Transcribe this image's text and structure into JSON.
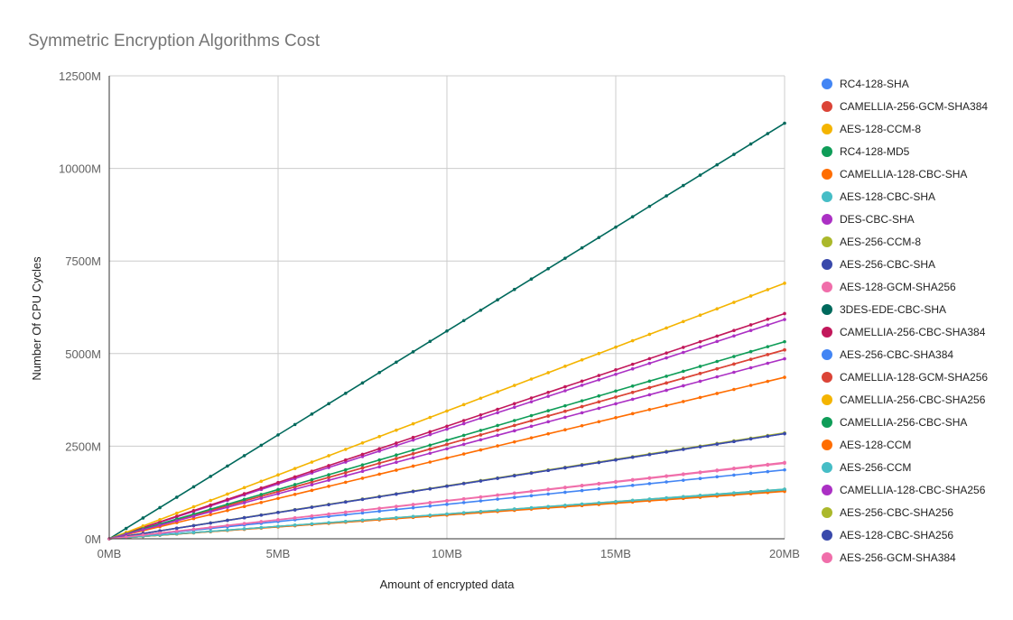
{
  "chart_data": {
    "type": "line",
    "title": "Symmetric Encryption Algorithms Cost",
    "xlabel": "Amount of encrypted data",
    "ylabel": "Number Of CPU Cycles",
    "x_unit": "MB",
    "y_unit": "M",
    "xlim": [
      0,
      20
    ],
    "ylim": [
      0,
      12500
    ],
    "x_ticks": [
      0,
      5,
      10,
      15,
      20
    ],
    "y_ticks": [
      0,
      2500,
      5000,
      7500,
      10000,
      12500
    ],
    "x_tick_labels": [
      "0MB",
      "5MB",
      "10MB",
      "15MB",
      "20MB"
    ],
    "y_tick_labels": [
      "0M",
      "2500M",
      "5000M",
      "7500M",
      "10000M",
      "12500M"
    ],
    "x_step": 0.5,
    "grid": true,
    "legend_position": "right",
    "series": [
      {
        "name": "RC4-128-SHA",
        "color": "#4285F4",
        "slope": 65
      },
      {
        "name": "CAMELLIA-256-GCM-SHA384",
        "color": "#DB4437",
        "slope": 255
      },
      {
        "name": "AES-128-CCM-8",
        "color": "#F4B400",
        "slope": 65
      },
      {
        "name": "RC4-128-MD5",
        "color": "#0F9D58",
        "slope": 66
      },
      {
        "name": "CAMELLIA-128-CBC-SHA",
        "color": "#FF6D00",
        "slope": 218
      },
      {
        "name": "AES-128-CBC-SHA",
        "color": "#46BDC6",
        "slope": 66
      },
      {
        "name": "DES-CBC-SHA",
        "color": "#AB30C4",
        "slope": 296
      },
      {
        "name": "AES-256-CCM-8",
        "color": "#ABB82B",
        "slope": 67
      },
      {
        "name": "AES-256-CBC-SHA",
        "color": "#3949AB",
        "slope": 142
      },
      {
        "name": "AES-128-GCM-SHA256",
        "color": "#F06EAA",
        "slope": 103
      },
      {
        "name": "3DES-EDE-CBC-SHA",
        "color": "#00695C",
        "slope": 561
      },
      {
        "name": "CAMELLIA-256-CBC-SHA384",
        "color": "#C2185B",
        "slope": 304
      },
      {
        "name": "AES-256-CBC-SHA384",
        "color": "#4285F4",
        "slope": 93
      },
      {
        "name": "CAMELLIA-128-GCM-SHA256",
        "color": "#DB4437",
        "slope": 255
      },
      {
        "name": "CAMELLIA-256-CBC-SHA256",
        "color": "#F4B400",
        "slope": 345
      },
      {
        "name": "CAMELLIA-256-CBC-SHA",
        "color": "#0F9D58",
        "slope": 266
      },
      {
        "name": "AES-128-CCM",
        "color": "#FF6D00",
        "slope": 64
      },
      {
        "name": "AES-256-CCM",
        "color": "#46BDC6",
        "slope": 67
      },
      {
        "name": "CAMELLIA-128-CBC-SHA256",
        "color": "#AB30C4",
        "slope": 243
      },
      {
        "name": "AES-256-CBC-SHA256",
        "color": "#ABB82B",
        "slope": 143
      },
      {
        "name": "AES-128-CBC-SHA256",
        "color": "#3949AB",
        "slope": 142
      },
      {
        "name": "AES-256-GCM-SHA384",
        "color": "#F06EAA",
        "slope": 102
      }
    ]
  }
}
